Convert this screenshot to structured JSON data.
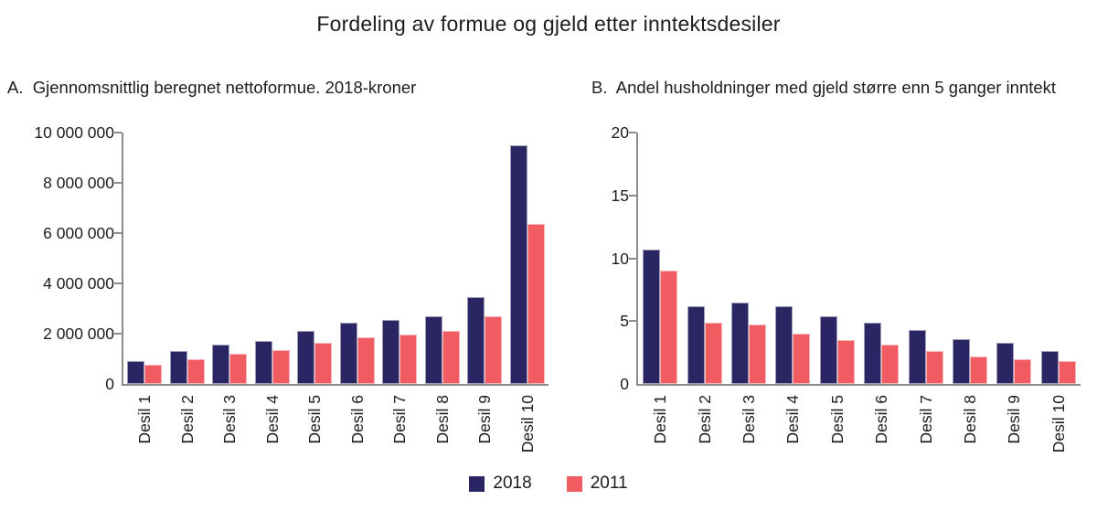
{
  "title": "Fordeling av formue og gjeld etter inntektsdesiler",
  "panels": {
    "a_title": "A.  Gjennomsnittlig beregnet nettoformue. 2018-kroner",
    "b_title": "B.  Andel husholdninger med gjeld større enn 5 ganger inntekt"
  },
  "colors": {
    "series_2018": "#2a2663",
    "series_2011": "#f05c62",
    "axis": "#8c8c8c",
    "text": "#1d1d1b"
  },
  "legend": {
    "position": "bottom-center",
    "items": [
      {
        "label": "2018",
        "color": "#2a2663"
      },
      {
        "label": "2011",
        "color": "#f05c62"
      }
    ]
  },
  "chart_data": [
    {
      "type": "bar",
      "panel": "A",
      "title": "A.  Gjennomsnittlig beregnet nettoformue. 2018-kroner",
      "categories": [
        "Desil 1",
        "Desil 2",
        "Desil 3",
        "Desil 4",
        "Desil 5",
        "Desil 6",
        "Desil 7",
        "Desil 8",
        "Desil 9",
        "Desil 10"
      ],
      "series": [
        {
          "name": "2018",
          "color": "#2a2663",
          "values": [
            900000,
            1300000,
            1550000,
            1700000,
            2100000,
            2450000,
            2550000,
            2700000,
            3450000,
            9500000
          ]
        },
        {
          "name": "2011",
          "color": "#f05c62",
          "values": [
            750000,
            1000000,
            1200000,
            1350000,
            1650000,
            1850000,
            1950000,
            2100000,
            2700000,
            6350000
          ]
        }
      ],
      "xlabel": "",
      "ylabel": "",
      "ylim": [
        0,
        10000000
      ],
      "yticks": [
        {
          "value": 0,
          "label": "0"
        },
        {
          "value": 2000000,
          "label": "2 000 000"
        },
        {
          "value": 4000000,
          "label": "4 000 000"
        },
        {
          "value": 6000000,
          "label": "6 000 000"
        },
        {
          "value": 8000000,
          "label": "8 000 000"
        },
        {
          "value": 10000000,
          "label": "10 000 000"
        }
      ],
      "grid": false,
      "legend_position": "bottom"
    },
    {
      "type": "bar",
      "panel": "B",
      "title": "B.  Andel husholdninger med gjeld større enn 5 ganger inntekt",
      "categories": [
        "Desil 1",
        "Desil 2",
        "Desil 3",
        "Desil 4",
        "Desil 5",
        "Desil 6",
        "Desil 7",
        "Desil 8",
        "Desil 9",
        "Desil 10"
      ],
      "series": [
        {
          "name": "2018",
          "color": "#2a2663",
          "values": [
            10.7,
            6.2,
            6.5,
            6.2,
            5.4,
            4.9,
            4.3,
            3.6,
            3.3,
            2.6
          ]
        },
        {
          "name": "2011",
          "color": "#f05c62",
          "values": [
            9.0,
            4.9,
            4.7,
            4.0,
            3.5,
            3.1,
            2.6,
            2.2,
            2.0,
            1.8
          ]
        }
      ],
      "xlabel": "",
      "ylabel": "",
      "ylim": [
        0,
        20
      ],
      "yticks": [
        {
          "value": 0,
          "label": "0"
        },
        {
          "value": 5,
          "label": "5"
        },
        {
          "value": 10,
          "label": "10"
        },
        {
          "value": 15,
          "label": "15"
        },
        {
          "value": 20,
          "label": "20"
        }
      ],
      "grid": false,
      "legend_position": "bottom"
    }
  ]
}
